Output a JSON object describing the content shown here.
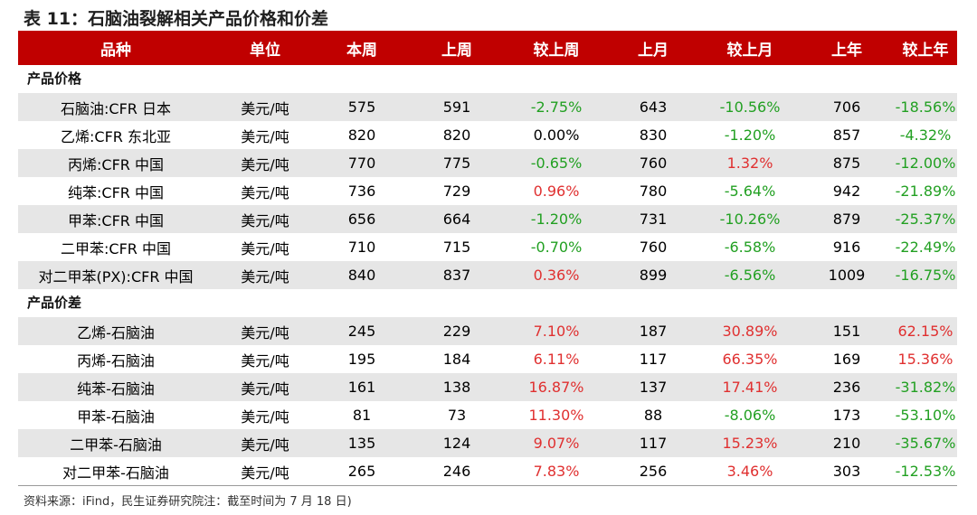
{
  "caption": "表 11：石脑油裂解相关产品价格和价差",
  "headers": [
    "品种",
    "单位",
    "本周",
    "上周",
    "较上周",
    "上月",
    "较上月",
    "上年",
    "较上年"
  ],
  "section1_title": "产品价格",
  "prices": [
    [
      "石脑油:CFR 日本",
      "美元/吨",
      "575",
      "591",
      "-2.75%",
      "643",
      "-10.56%",
      "706",
      "-18.56%"
    ],
    [
      "乙烯:CFR 东北亚",
      "美元/吨",
      "820",
      "820",
      "0.00%",
      "830",
      "-1.20%",
      "857",
      "-4.32%"
    ],
    [
      "丙烯:CFR 中国",
      "美元/吨",
      "770",
      "775",
      "-0.65%",
      "760",
      "1.32%",
      "875",
      "-12.00%"
    ],
    [
      "纯苯:CFR 中国",
      "美元/吨",
      "736",
      "729",
      "0.96%",
      "780",
      "-5.64%",
      "942",
      "-21.89%"
    ],
    [
      "甲苯:CFR 中国",
      "美元/吨",
      "656",
      "664",
      "-1.20%",
      "731",
      "-10.26%",
      "879",
      "-25.37%"
    ],
    [
      "二甲苯:CFR 中国",
      "美元/吨",
      "710",
      "715",
      "-0.70%",
      "760",
      "-6.58%",
      "916",
      "-22.49%"
    ],
    [
      "对二甲苯(PX):CFR 中国",
      "美元/吨",
      "840",
      "837",
      "0.36%",
      "899",
      "-6.56%",
      "1009",
      "-16.75%"
    ]
  ],
  "section2_title": "产品价差",
  "spreads": [
    [
      "乙烯-石脑油",
      "美元/吨",
      "245",
      "229",
      "7.10%",
      "187",
      "30.89%",
      "151",
      "62.15%"
    ],
    [
      "丙烯-石脑油",
      "美元/吨",
      "195",
      "184",
      "6.11%",
      "117",
      "66.35%",
      "169",
      "15.36%"
    ],
    [
      "纯苯-石脑油",
      "美元/吨",
      "161",
      "138",
      "16.87%",
      "137",
      "17.41%",
      "236",
      "-31.82%"
    ],
    [
      "甲苯-石脑油",
      "美元/吨",
      "81",
      "73",
      "11.30%",
      "88",
      "-8.06%",
      "173",
      "-53.10%"
    ],
    [
      "二甲苯-石脑油",
      "美元/吨",
      "135",
      "124",
      "9.07%",
      "117",
      "15.23%",
      "210",
      "-35.67%"
    ],
    [
      "对二甲苯-石脑油",
      "美元/吨",
      "265",
      "246",
      "7.83%",
      "256",
      "3.46%",
      "303",
      "-12.53%"
    ]
  ],
  "source": "资料来源：iFind，民生证券研究院注：截至时间为 7 月 18 日)",
  "colors": {
    "header_bg": "#c00000",
    "positive": "#e03030",
    "negative": "#22a022",
    "shade": "#e6e6e6"
  }
}
